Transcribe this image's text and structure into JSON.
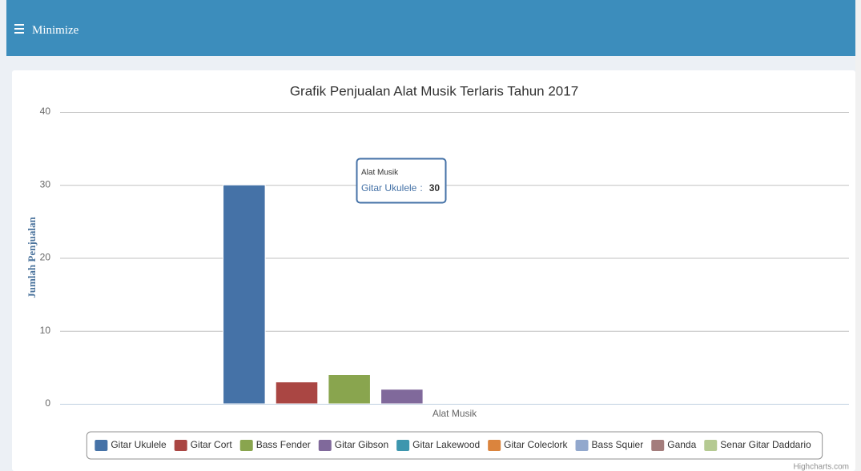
{
  "header": {
    "menu_label": "Minimize"
  },
  "chart_data": {
    "type": "column",
    "title": "Grafik Penjualan Alat Musik Terlaris Tahun 2017",
    "y_axis_title": "Jumlah Penjualan",
    "categories": [
      "Alat Musik"
    ],
    "series": [
      {
        "name": "Gitar Ukulele",
        "color": "#4572A7",
        "values": [
          30
        ]
      },
      {
        "name": "Gitar Cort",
        "color": "#AA4643",
        "values": [
          3
        ]
      },
      {
        "name": "Bass Fender",
        "color": "#89A54E",
        "values": [
          4
        ]
      },
      {
        "name": "Gitar Gibson",
        "color": "#80699B",
        "values": [
          2
        ]
      },
      {
        "name": "Gitar Lakewood",
        "color": "#3D96AE",
        "values": [
          0
        ]
      },
      {
        "name": "Gitar Coleclork",
        "color": "#DB843D",
        "values": [
          0
        ]
      },
      {
        "name": "Bass Squier",
        "color": "#92A8CD",
        "values": [
          0
        ]
      },
      {
        "name": "Ganda",
        "color": "#A47D7C",
        "values": [
          0
        ]
      },
      {
        "name": "Senar Gitar Daddario",
        "color": "#B5CA92",
        "values": [
          0
        ]
      }
    ],
    "ylim": [
      0,
      40
    ],
    "yticks": [
      0,
      10,
      20,
      30,
      40
    ],
    "grid": true,
    "legend": "bottom",
    "tooltip_separator": ":",
    "credits": "Highcharts.com"
  }
}
